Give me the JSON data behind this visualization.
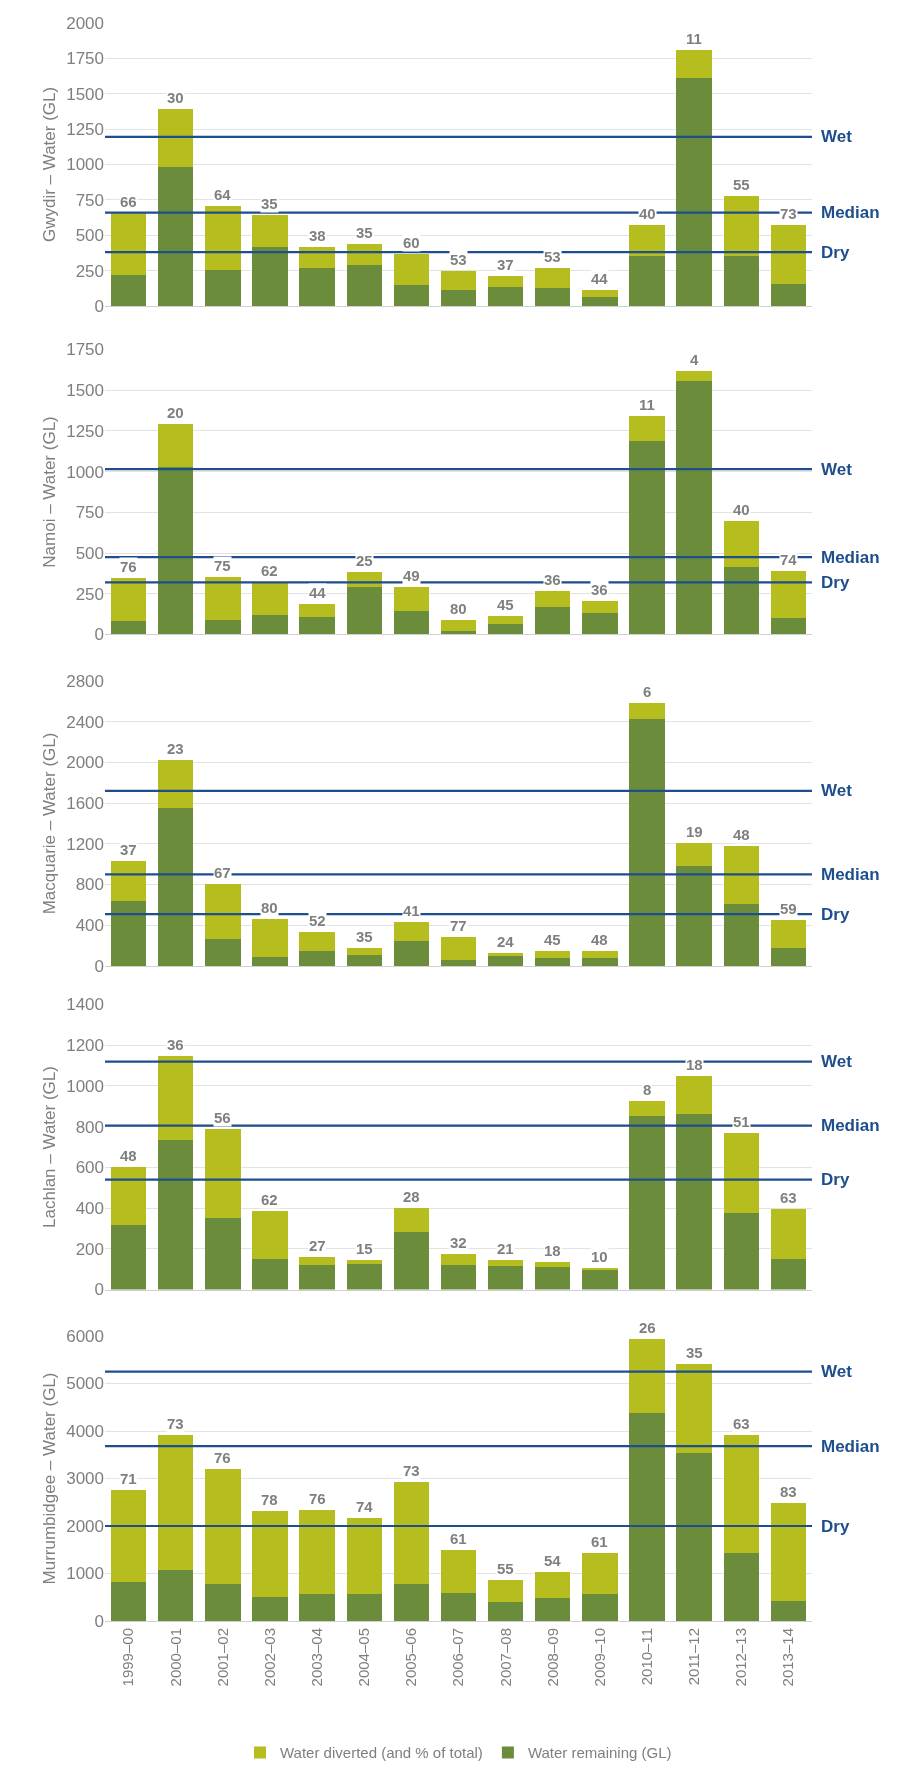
{
  "chart_data": [
    {
      "type": "bar",
      "stacked": true,
      "ylabel": "Gwydir – Water (GL)",
      "categories": [
        "1999–00",
        "2000–01",
        "2001–02",
        "2002–03",
        "2003–04",
        "2004–05",
        "2005–06",
        "2006–07",
        "2007–08",
        "2008–09",
        "2009–10",
        "2010–11",
        "2011–12",
        "2012–13",
        "2013–14"
      ],
      "ylim": [
        0,
        2000
      ],
      "yticks": [
        0,
        250,
        500,
        750,
        1000,
        1250,
        1500,
        1750,
        2000
      ],
      "grid": "y",
      "tick_labels": "y",
      "legend": false,
      "series": [
        {
          "color": "#6b8c3a",
          "values": [
            220,
            980,
            255,
            415,
            265,
            290,
            145,
            115,
            135,
            125,
            60,
            350,
            1610,
            350,
            155
          ]
        },
        {
          "color": "#b5bd1f",
          "values": [
            440,
            415,
            450,
            225,
            155,
            150,
            220,
            130,
            75,
            145,
            50,
            220,
            200,
            430,
            415
          ]
        }
      ],
      "annotations": [
        {
          "text": "66",
          "x": "1999–00",
          "y": 660
        },
        {
          "text": "30",
          "x": "2000–01",
          "y": 1395
        },
        {
          "text": "64",
          "x": "2001–02",
          "y": 705
        },
        {
          "text": "35",
          "x": "2002–03",
          "y": 640
        },
        {
          "text": "38",
          "x": "2003–04",
          "y": 420
        },
        {
          "text": "35",
          "x": "2004–05",
          "y": 440
        },
        {
          "text": "60",
          "x": "2005–06",
          "y": 365
        },
        {
          "text": "53",
          "x": "2006–07",
          "y": 245
        },
        {
          "text": "37",
          "x": "2007–08",
          "y": 210
        },
        {
          "text": "53",
          "x": "2008–09",
          "y": 270
        },
        {
          "text": "44",
          "x": "2009–10",
          "y": 110
        },
        {
          "text": "40",
          "x": "2010–11",
          "y": 570
        },
        {
          "text": "11",
          "x": "2011–12",
          "y": 1810
        },
        {
          "text": "55",
          "x": "2012–13",
          "y": 780
        },
        {
          "text": "73",
          "x": "2013–14",
          "y": 570
        }
      ],
      "ref_lines": [
        {
          "axis": "y",
          "value": 1195,
          "label": "Wet",
          "color": "#1f4e8c"
        },
        {
          "axis": "y",
          "value": 660,
          "label": "Median",
          "color": "#1f4e8c"
        },
        {
          "axis": "y",
          "value": 380,
          "label": "Dry",
          "color": "#1f4e8c"
        }
      ]
    },
    {
      "type": "bar",
      "stacked": true,
      "ylabel": "Namoi – Water (GL)",
      "categories": [
        "1999–00",
        "2000–01",
        "2001–02",
        "2002–03",
        "2003–04",
        "2004–05",
        "2005–06",
        "2006–07",
        "2007–08",
        "2008–09",
        "2009–10",
        "2010–11",
        "2011–12",
        "2012–13",
        "2013–14"
      ],
      "ylim": [
        0,
        1750
      ],
      "yticks": [
        0,
        250,
        500,
        750,
        1000,
        1250,
        1500,
        1750
      ],
      "grid": "y",
      "tick_labels": "y",
      "legend": false,
      "series": [
        {
          "color": "#6b8c3a",
          "values": [
            85,
            1030,
            90,
            120,
            105,
            290,
            145,
            20,
            65,
            170,
            130,
            1190,
            1555,
            415,
            100
          ]
        },
        {
          "color": "#b5bd1f",
          "values": [
            260,
            265,
            265,
            200,
            80,
            95,
            145,
            70,
            50,
            95,
            75,
            150,
            65,
            280,
            290
          ]
        }
      ],
      "annotations": [
        {
          "text": "76",
          "x": "1999–00",
          "y": 345
        },
        {
          "text": "20",
          "x": "2000–01",
          "y": 1295
        },
        {
          "text": "75",
          "x": "2001–02",
          "y": 355
        },
        {
          "text": "62",
          "x": "2002–03",
          "y": 320
        },
        {
          "text": "44",
          "x": "2003–04",
          "y": 185
        },
        {
          "text": "25",
          "x": "2004–05",
          "y": 385
        },
        {
          "text": "49",
          "x": "2005–06",
          "y": 290
        },
        {
          "text": "80",
          "x": "2006–07",
          "y": 90
        },
        {
          "text": "45",
          "x": "2007–08",
          "y": 115
        },
        {
          "text": "36",
          "x": "2008–09",
          "y": 265
        },
        {
          "text": "36",
          "x": "2009–10",
          "y": 205
        },
        {
          "text": "11",
          "x": "2010–11",
          "y": 1340
        },
        {
          "text": "4",
          "x": "2011–12",
          "y": 1620
        },
        {
          "text": "40",
          "x": "2012–13",
          "y": 695
        },
        {
          "text": "74",
          "x": "2013–14",
          "y": 390
        }
      ],
      "ref_lines": [
        {
          "axis": "y",
          "value": 1015,
          "label": "Wet",
          "color": "#1f4e8c"
        },
        {
          "axis": "y",
          "value": 475,
          "label": "Median",
          "color": "#1f4e8c"
        },
        {
          "axis": "y",
          "value": 320,
          "label": "Dry",
          "color": "#1f4e8c"
        }
      ]
    },
    {
      "type": "bar",
      "stacked": true,
      "ylabel": "Macquarie – Water (GL)",
      "categories": [
        "1999–00",
        "2000–01",
        "2001–02",
        "2002–03",
        "2003–04",
        "2004–05",
        "2005–06",
        "2006–07",
        "2007–08",
        "2008–09",
        "2009–10",
        "2010–11",
        "2011–12",
        "2012–13",
        "2013–14"
      ],
      "ylim": [
        0,
        2800
      ],
      "yticks": [
        0,
        400,
        800,
        1200,
        1600,
        2000,
        2400,
        2800
      ],
      "grid": "y",
      "tick_labels": "y",
      "legend": false,
      "series": [
        {
          "color": "#6b8c3a",
          "values": [
            640,
            1550,
            260,
            90,
            150,
            110,
            250,
            60,
            100,
            80,
            80,
            2430,
            980,
            610,
            180
          ]
        },
        {
          "color": "#b5bd1f",
          "values": [
            390,
            470,
            550,
            370,
            180,
            70,
            180,
            220,
            30,
            70,
            70,
            150,
            230,
            570,
            270
          ]
        }
      ],
      "annotations": [
        {
          "text": "37",
          "x": "1999–00",
          "y": 1030
        },
        {
          "text": "23",
          "x": "2000–01",
          "y": 2020
        },
        {
          "text": "67",
          "x": "2001–02",
          "y": 810
        },
        {
          "text": "80",
          "x": "2002–03",
          "y": 460
        },
        {
          "text": "52",
          "x": "2003–04",
          "y": 330
        },
        {
          "text": "35",
          "x": "2004–05",
          "y": 180
        },
        {
          "text": "41",
          "x": "2005–06",
          "y": 430
        },
        {
          "text": "77",
          "x": "2006–07",
          "y": 280
        },
        {
          "text": "24",
          "x": "2007–08",
          "y": 130
        },
        {
          "text": "45",
          "x": "2008–09",
          "y": 150
        },
        {
          "text": "48",
          "x": "2009–10",
          "y": 150
        },
        {
          "text": "6",
          "x": "2010–11",
          "y": 2580
        },
        {
          "text": "19",
          "x": "2011–12",
          "y": 1210
        },
        {
          "text": "48",
          "x": "2012–13",
          "y": 1180
        },
        {
          "text": "59",
          "x": "2013–14",
          "y": 450
        }
      ],
      "ref_lines": [
        {
          "axis": "y",
          "value": 1720,
          "label": "Wet",
          "color": "#1f4e8c"
        },
        {
          "axis": "y",
          "value": 900,
          "label": "Median",
          "color": "#1f4e8c"
        },
        {
          "axis": "y",
          "value": 510,
          "label": "Dry",
          "color": "#1f4e8c"
        }
      ]
    },
    {
      "type": "bar",
      "stacked": true,
      "ylabel": "Lachlan – Water (GL)",
      "categories": [
        "1999–00",
        "2000–01",
        "2001–02",
        "2002–03",
        "2003–04",
        "2004–05",
        "2005–06",
        "2006–07",
        "2007–08",
        "2008–09",
        "2009–10",
        "2010–11",
        "2011–12",
        "2012–13",
        "2013–14"
      ],
      "ylim": [
        0,
        1400
      ],
      "yticks": [
        0,
        200,
        400,
        600,
        800,
        1000,
        1200,
        1400
      ],
      "grid": "y",
      "tick_labels": "y",
      "legend": false,
      "series": [
        {
          "color": "#6b8c3a",
          "values": [
            315,
            735,
            350,
            150,
            120,
            125,
            285,
            120,
            115,
            110,
            95,
            850,
            860,
            375,
            150
          ]
        },
        {
          "color": "#b5bd1f",
          "values": [
            285,
            410,
            440,
            235,
            40,
            20,
            115,
            55,
            30,
            25,
            10,
            75,
            190,
            395,
            245
          ]
        }
      ],
      "annotations": [
        {
          "text": "48",
          "x": "1999–00",
          "y": 600
        },
        {
          "text": "36",
          "x": "2000–01",
          "y": 1145
        },
        {
          "text": "56",
          "x": "2001–02",
          "y": 790
        },
        {
          "text": "62",
          "x": "2002–03",
          "y": 385
        },
        {
          "text": "27",
          "x": "2003–04",
          "y": 160
        },
        {
          "text": "15",
          "x": "2004–05",
          "y": 145
        },
        {
          "text": "28",
          "x": "2005–06",
          "y": 400
        },
        {
          "text": "32",
          "x": "2006–07",
          "y": 175
        },
        {
          "text": "21",
          "x": "2007–08",
          "y": 145
        },
        {
          "text": "18",
          "x": "2008–09",
          "y": 135
        },
        {
          "text": "10",
          "x": "2009–10",
          "y": 105
        },
        {
          "text": "8",
          "x": "2010–11",
          "y": 925
        },
        {
          "text": "18",
          "x": "2011–12",
          "y": 1050
        },
        {
          "text": "51",
          "x": "2012–13",
          "y": 770
        },
        {
          "text": "63",
          "x": "2013–14",
          "y": 395
        }
      ],
      "ref_lines": [
        {
          "axis": "y",
          "value": 1120,
          "label": "Wet",
          "color": "#1f4e8c"
        },
        {
          "axis": "y",
          "value": 805,
          "label": "Median",
          "color": "#1f4e8c"
        },
        {
          "axis": "y",
          "value": 540,
          "label": "Dry",
          "color": "#1f4e8c"
        }
      ]
    },
    {
      "type": "bar",
      "stacked": true,
      "ylabel": "Murrumbidgee – Water (GL)",
      "categories": [
        "1999–00",
        "2000–01",
        "2001–02",
        "2002–03",
        "2003–04",
        "2004–05",
        "2005–06",
        "2006–07",
        "2007–08",
        "2008–09",
        "2009–10",
        "2010–11",
        "2011–12",
        "2012–13",
        "2013–14"
      ],
      "ylim": [
        0,
        6000
      ],
      "yticks": [
        0,
        1000,
        2000,
        3000,
        4000,
        5000,
        6000
      ],
      "grid": "y",
      "legend": "bottom",
      "series": [
        {
          "name": "Water remaining (GL)",
          "color": "#6b8c3a",
          "values": [
            820,
            1080,
            780,
            500,
            560,
            560,
            780,
            580,
            390,
            480,
            560,
            4380,
            3540,
            1440,
            420
          ]
        },
        {
          "name": "Water diverted (and % of total)",
          "color": "#b5bd1f",
          "values": [
            1930,
            2840,
            2420,
            1820,
            1780,
            1600,
            2150,
            920,
            480,
            550,
            870,
            1550,
            1870,
            2470,
            2060
          ]
        }
      ],
      "annotations": [
        {
          "text": "71",
          "x": "1999–00",
          "y": 2750
        },
        {
          "text": "73",
          "x": "2000–01",
          "y": 3920
        },
        {
          "text": "76",
          "x": "2001–02",
          "y": 3200
        },
        {
          "text": "78",
          "x": "2002–03",
          "y": 2320
        },
        {
          "text": "76",
          "x": "2003–04",
          "y": 2340
        },
        {
          "text": "74",
          "x": "2004–05",
          "y": 2160
        },
        {
          "text": "73",
          "x": "2005–06",
          "y": 2930
        },
        {
          "text": "61",
          "x": "2006–07",
          "y": 1500
        },
        {
          "text": "55",
          "x": "2007–08",
          "y": 870
        },
        {
          "text": "54",
          "x": "2008–09",
          "y": 1030
        },
        {
          "text": "61",
          "x": "2009–10",
          "y": 1430
        },
        {
          "text": "26",
          "x": "2010–11",
          "y": 5930
        },
        {
          "text": "35",
          "x": "2011–12",
          "y": 5410
        },
        {
          "text": "63",
          "x": "2012–13",
          "y": 3910
        },
        {
          "text": "83",
          "x": "2013–14",
          "y": 2480
        }
      ],
      "ref_lines": [
        {
          "axis": "y",
          "value": 5250,
          "label": "Wet",
          "color": "#1f4e8c"
        },
        {
          "axis": "y",
          "value": 3680,
          "label": "Median",
          "color": "#1f4e8c"
        },
        {
          "axis": "y",
          "value": 2000,
          "label": "Dry",
          "color": "#1f4e8c"
        }
      ]
    }
  ]
}
